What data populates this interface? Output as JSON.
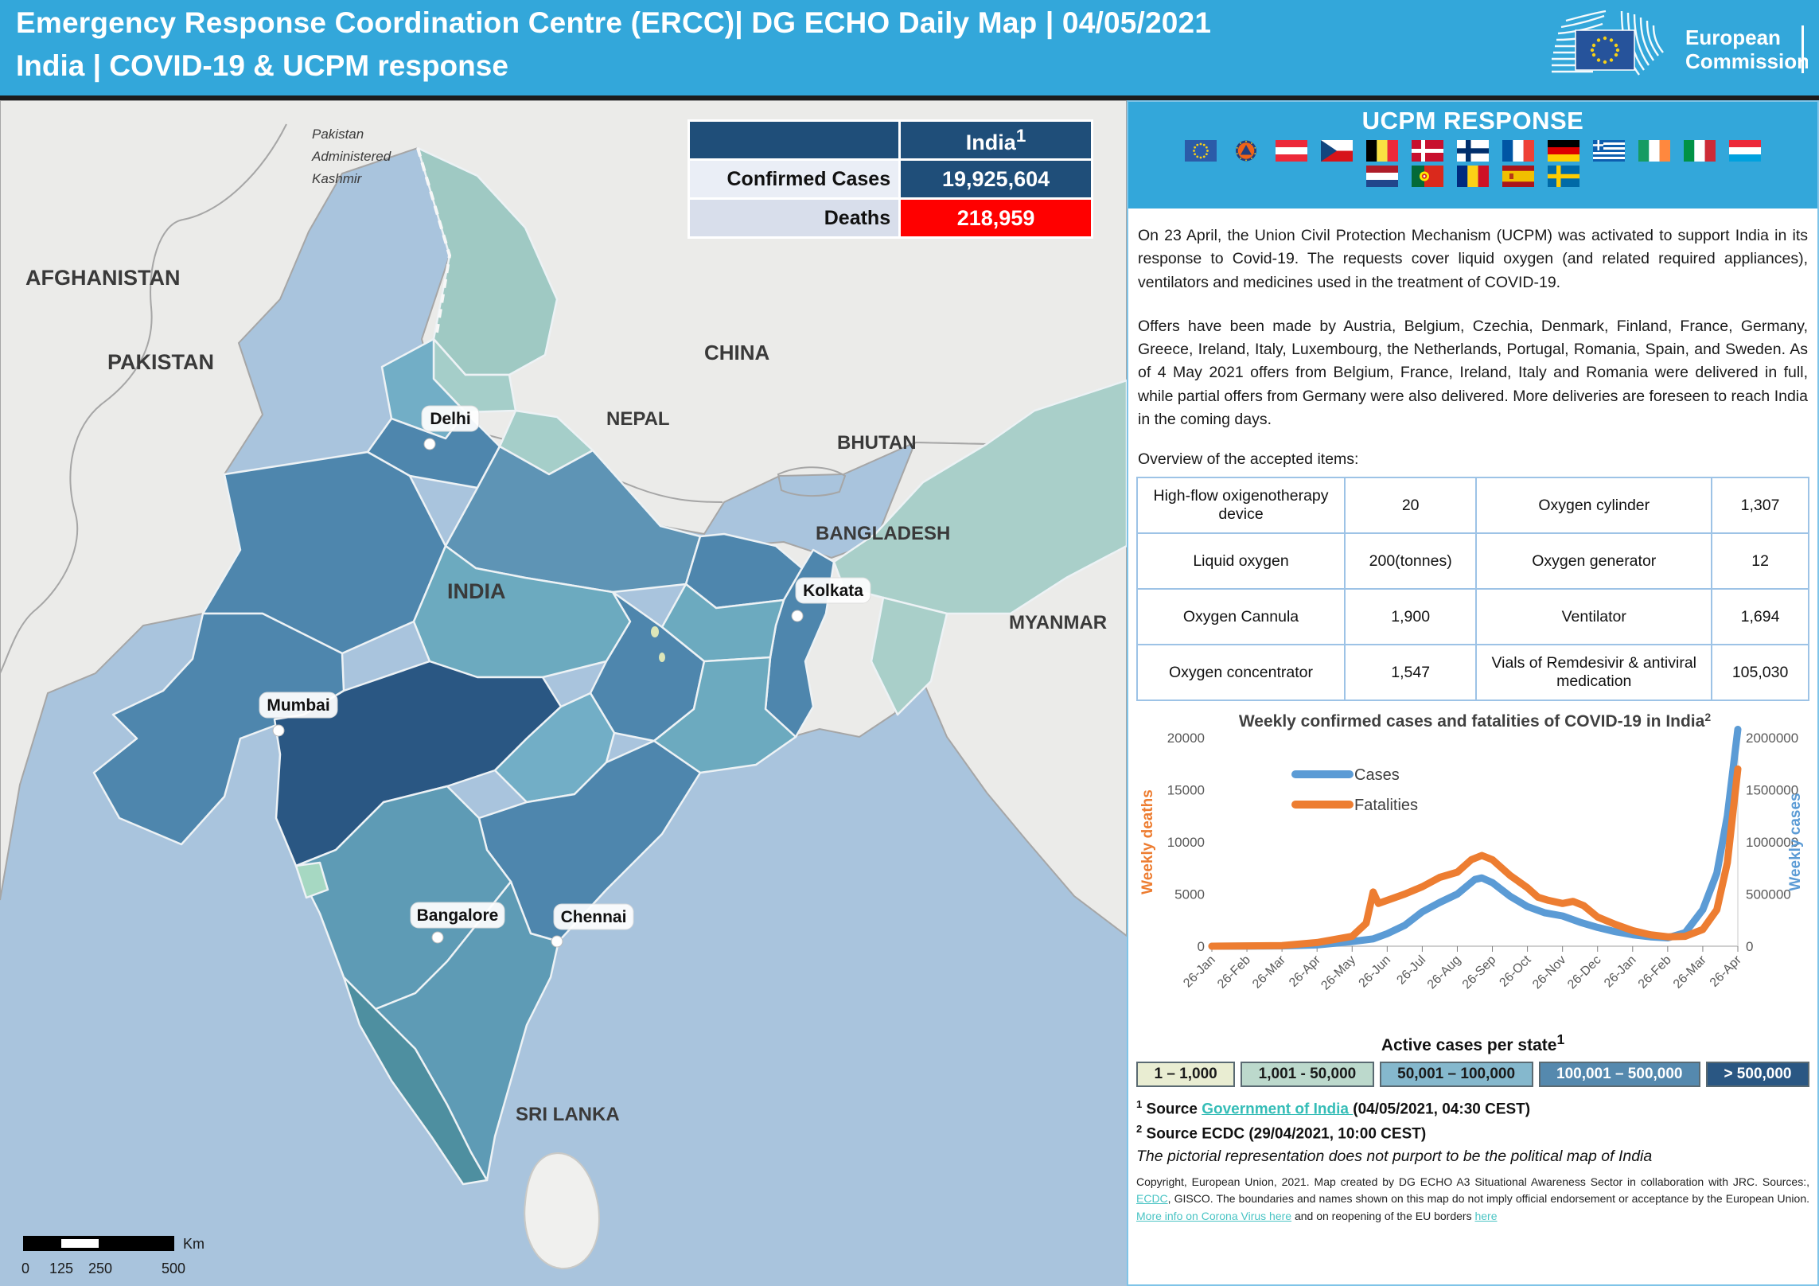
{
  "header": {
    "title_line1": "Emergency Response Coordination Centre (ERCC)| DG ECHO Daily Map | 04/05/2021",
    "title_line2": "India | COVID-19 & UCPM response",
    "logo_line1": "European",
    "logo_line2": "Commission"
  },
  "stats_table": {
    "column_header": "India",
    "column_header_sup": "1",
    "rows": [
      {
        "label": "Confirmed Cases",
        "value": "19,925,604",
        "value_bg": "#1f4e79",
        "label_bg": "#eaeef6"
      },
      {
        "label": "Deaths",
        "value": "218,959",
        "value_bg": "#ff0000",
        "label_bg": "#d8deeb"
      }
    ]
  },
  "map": {
    "country_labels": [
      "AFGHANISTAN",
      "PAKISTAN",
      "CHINA",
      "NEPAL",
      "BHUTAN",
      "BANGLADESH",
      "MYANMAR",
      "INDIA",
      "SRI LANKA"
    ],
    "kashmir_label_lines": [
      "Pakistan",
      "Administered",
      "Kashmir"
    ],
    "cities": [
      "Delhi",
      "Mumbai",
      "Kolkata",
      "Bangalore",
      "Chennai"
    ],
    "scale_bar": {
      "ticks": [
        "0",
        "125",
        "250",
        "500"
      ],
      "unit": "Km"
    }
  },
  "ucpm_panel": {
    "title": "UCPM RESPONSE",
    "flags_row1": [
      "eu",
      "ucpm",
      "austria",
      "czechia",
      "belgium",
      "denmark",
      "finland",
      "france",
      "germany",
      "greece",
      "ireland",
      "italy",
      "luxembourg"
    ],
    "flags_row2": [
      "netherlands",
      "portugal",
      "romania",
      "spain",
      "sweden"
    ],
    "paragraph1": "On 23 April, the Union Civil Protection Mechanism (UCPM) was activated to support India in its response to Covid-19. The requests cover liquid oxygen (and related required appliances), ventilators and medicines used in the treatment of COVID-19.",
    "paragraph2": "Offers have been made by Austria, Belgium, Czechia, Denmark, Finland, France, Germany, Greece, Ireland, Italy, Luxembourg, the Netherlands, Portugal, Romania, Spain, and Sweden. As of 4 May 2021 offers from Belgium, France, Ireland, Italy and Romania were delivered in full, while partial offers from Germany were also delivered. More deliveries are foreseen to reach India in the coming days.",
    "items_heading": "Overview of the accepted items:",
    "items_rows": [
      [
        "High-flow oxigenotherapy device",
        "20",
        "Oxygen cylinder",
        "1,307"
      ],
      [
        "Liquid oxygen",
        "200(tonnes)",
        "Oxygen generator",
        "12"
      ],
      [
        "Oxygen Cannula",
        "1,900",
        "Ventilator",
        "1,694"
      ],
      [
        "Oxygen concentrator",
        "1,547",
        "Vials of Remdesivir & antiviral medication",
        "105,030"
      ]
    ]
  },
  "chart_data": {
    "type": "line",
    "title": "Weekly confirmed cases and fatalities of COVID-19 in India",
    "title_sup": "2",
    "ylabel_left": "Weekly deaths",
    "ylabel_right": "Weekly cases",
    "x_tick_labels": [
      "26-Jan",
      "26-Feb",
      "26-Mar",
      "26-Apr",
      "26-May",
      "26-Jun",
      "26-Jul",
      "26-Aug",
      "26-Sep",
      "26-Oct",
      "26-Nov",
      "26-Dec",
      "26-Jan",
      "26-Feb",
      "26-Mar",
      "26-Apr"
    ],
    "y_left_ticks": [
      0,
      5000,
      10000,
      15000,
      20000
    ],
    "y_right_ticks": [
      0,
      500000,
      1000000,
      1500000,
      2000000
    ],
    "y_left_max": 20000,
    "y_right_max": 2000000,
    "legend": [
      "Cases",
      "Fatalities"
    ],
    "series": [
      {
        "name": "Cases",
        "axis": "right",
        "color": "#5b9bd5",
        "points": [
          [
            0,
            0
          ],
          [
            1,
            500
          ],
          [
            2,
            3000
          ],
          [
            3,
            12000
          ],
          [
            4,
            45000
          ],
          [
            4.6,
            70000
          ],
          [
            5,
            120000
          ],
          [
            5.5,
            200000
          ],
          [
            6,
            330000
          ],
          [
            6.5,
            420000
          ],
          [
            7,
            500000
          ],
          [
            7.5,
            640000
          ],
          [
            7.7,
            655000
          ],
          [
            8,
            610000
          ],
          [
            8.5,
            480000
          ],
          [
            9,
            380000
          ],
          [
            9.5,
            320000
          ],
          [
            10,
            290000
          ],
          [
            10.5,
            230000
          ],
          [
            11,
            180000
          ],
          [
            11.5,
            140000
          ],
          [
            12,
            110000
          ],
          [
            12.5,
            90000
          ],
          [
            13,
            80000
          ],
          [
            13.5,
            130000
          ],
          [
            14,
            350000
          ],
          [
            14.4,
            700000
          ],
          [
            14.7,
            1250000
          ],
          [
            15,
            2080000
          ]
        ]
      },
      {
        "name": "Fatalities",
        "axis": "left",
        "color": "#ed7d31",
        "points": [
          [
            0,
            0
          ],
          [
            1,
            30
          ],
          [
            2,
            60
          ],
          [
            3,
            350
          ],
          [
            4,
            950
          ],
          [
            4.4,
            2200
          ],
          [
            4.6,
            5200
          ],
          [
            4.75,
            4100
          ],
          [
            5,
            4400
          ],
          [
            5.5,
            5000
          ],
          [
            6,
            5700
          ],
          [
            6.5,
            6600
          ],
          [
            7,
            7100
          ],
          [
            7.4,
            8300
          ],
          [
            7.7,
            8700
          ],
          [
            8,
            8300
          ],
          [
            8.5,
            6800
          ],
          [
            9,
            5600
          ],
          [
            9.3,
            4700
          ],
          [
            9.6,
            4400
          ],
          [
            10,
            4100
          ],
          [
            10.3,
            4300
          ],
          [
            10.6,
            3900
          ],
          [
            11,
            2800
          ],
          [
            11.5,
            2100
          ],
          [
            12,
            1500
          ],
          [
            12.5,
            1100
          ],
          [
            13,
            900
          ],
          [
            13.5,
            950
          ],
          [
            14,
            1600
          ],
          [
            14.4,
            3500
          ],
          [
            14.7,
            8000
          ],
          [
            15,
            17000
          ]
        ]
      }
    ]
  },
  "active_cases_legend": {
    "title": "Active cases per state",
    "title_sup": "1",
    "classes": [
      {
        "label": "1 – 1,000",
        "color": "#e9edd2",
        "text_color": "#1a1a1a"
      },
      {
        "label": "1,001 - 50,000",
        "color": "#bcd9cc",
        "text_color": "#1a1a1a"
      },
      {
        "label": "50,001 – 100,000",
        "color": "#85b8cd",
        "text_color": "#1a1a1a"
      },
      {
        "label": "100,001 – 500,000",
        "color": "#5589ae",
        "text_color": "#ffffff"
      },
      {
        "label": "> 500,000",
        "color": "#2a5783",
        "text_color": "#ffffff"
      }
    ]
  },
  "sources": {
    "s1_sup": "1",
    "s1_prefix": "Source ",
    "s1_link": "Government of India ",
    "s1_suffix": "(04/05/2021, 04:30 CEST)",
    "s2_sup": "2",
    "s2_text": "Source ECDC  (29/04/2021, 10:00 CEST)",
    "disclaimer": "The pictorial representation does not purport to be the political map of India"
  },
  "copyright": {
    "parts": [
      {
        "text": "Copyright, European Union, 2021. Map created by DG ECHO A3 Situational Awareness Sector in collaboration with JRC.   Sources:, "
      },
      {
        "link": "ECDC"
      },
      {
        "text": ", GISCO. The boundaries and names shown on this map do not imply official endorsement or acceptance  by the European Union.  "
      },
      {
        "link": "More info on Corona Virus here"
      },
      {
        "text": " and on reopening of the EU borders "
      },
      {
        "link": "here"
      }
    ]
  },
  "colors": {
    "header_blue": "#33a7da",
    "table_navy": "#1f4e79",
    "deaths_red": "#ff0000",
    "cases_blue": "#5b9bd5",
    "fatalities_orange": "#ed7d31",
    "link_teal": "#35bdb7",
    "sea": "#a9c4dd"
  }
}
